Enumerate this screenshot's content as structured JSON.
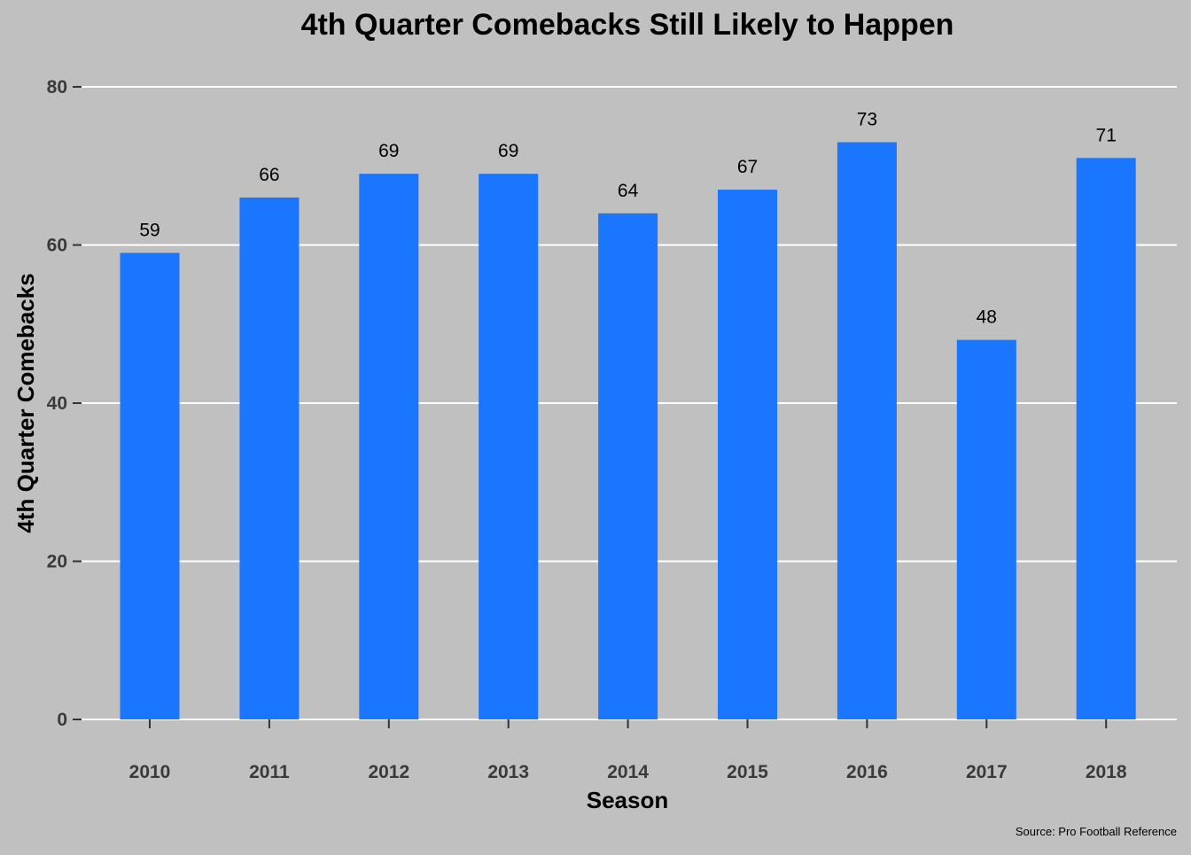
{
  "chart_data": {
    "type": "bar",
    "title": "4th Quarter Comebacks Still Likely to Happen",
    "xlabel": "Season",
    "ylabel": "4th Quarter Comebacks",
    "categories": [
      "2010",
      "2011",
      "2012",
      "2013",
      "2014",
      "2015",
      "2016",
      "2017",
      "2018"
    ],
    "values": [
      59,
      66,
      69,
      69,
      64,
      67,
      73,
      48,
      71
    ],
    "data_labels": [
      "59",
      "66",
      "69",
      "69",
      "64",
      "67",
      "73",
      "48",
      "71"
    ],
    "ylim": [
      0,
      80
    ],
    "y_ticks": [
      0,
      20,
      40,
      60,
      80
    ],
    "y_tick_labels": [
      "0",
      "20",
      "40",
      "60",
      "80"
    ],
    "grid": "horizontal",
    "legend": "none",
    "caption": "Source: Pro Football Reference",
    "colors": {
      "bar": "#1a76ff",
      "background": "#c0c0c0",
      "gridline": "#ffffff",
      "tick_label": "#3a3a3a",
      "text": "#000000"
    }
  }
}
